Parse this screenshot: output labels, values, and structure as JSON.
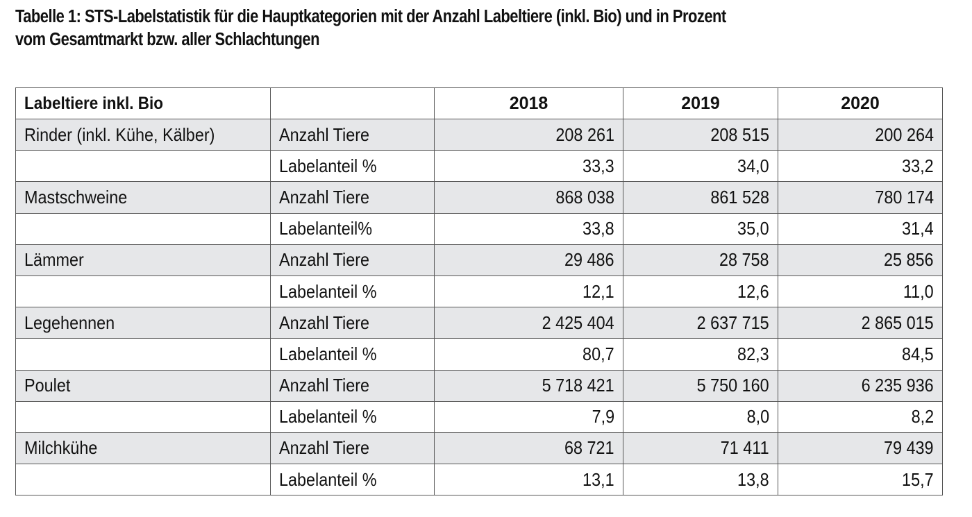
{
  "caption": {
    "line1": "Tabelle 1: STS-Labelstatistik für die Hauptkategorien mit der Anzahl Labeltiere (inkl. Bio) und in Prozent",
    "line2": "vom Gesamtmarkt bzw. aller Schlachtungen"
  },
  "table": {
    "header": {
      "label": "Labeltiere inkl. Bio",
      "measure": "",
      "years": [
        "2018",
        "2019",
        "2020"
      ]
    },
    "rows": [
      {
        "category": "Rinder (inkl. Kühe, Kälber)",
        "measure": "Anzahl Tiere",
        "values": [
          "208 261",
          "208 515",
          "200 264"
        ]
      },
      {
        "category": "",
        "measure": "Labelanteil %",
        "values": [
          "33,3",
          "34,0",
          "33,2"
        ]
      },
      {
        "category": "Mastschweine",
        "measure": "Anzahl Tiere",
        "values": [
          "868 038",
          "861 528",
          "780 174"
        ]
      },
      {
        "category": "",
        "measure": "Labelanteil%",
        "values": [
          "33,8",
          "35,0",
          "31,4"
        ]
      },
      {
        "category": "Lämmer",
        "measure": "Anzahl Tiere",
        "values": [
          "29 486",
          "28 758",
          "25 856"
        ]
      },
      {
        "category": "",
        "measure": "Labelanteil %",
        "values": [
          "12,1",
          "12,6",
          "11,0"
        ]
      },
      {
        "category": "Legehennen",
        "measure": "Anzahl Tiere",
        "values": [
          "2 425 404",
          "2 637 715",
          "2 865 015"
        ]
      },
      {
        "category": "",
        "measure": "Labelanteil %",
        "values": [
          "80,7",
          "82,3",
          "84,5"
        ]
      },
      {
        "category": "Poulet",
        "measure": "Anzahl Tiere",
        "values": [
          "5 718 421",
          "5 750 160",
          "6 235 936"
        ]
      },
      {
        "category": "",
        "measure": "Labelanteil %",
        "values": [
          "7,9",
          "8,0",
          "8,2"
        ]
      },
      {
        "category": "Milchkühe",
        "measure": "Anzahl Tiere",
        "values": [
          "68 721",
          "71 411",
          "79 439"
        ]
      },
      {
        "category": "",
        "measure": "Labelanteil %",
        "values": [
          "13,1",
          "13,8",
          "15,7"
        ]
      }
    ]
  },
  "colors": {
    "shaded_row": "#e6e7e9",
    "border": "#555555",
    "text": "#111111"
  }
}
